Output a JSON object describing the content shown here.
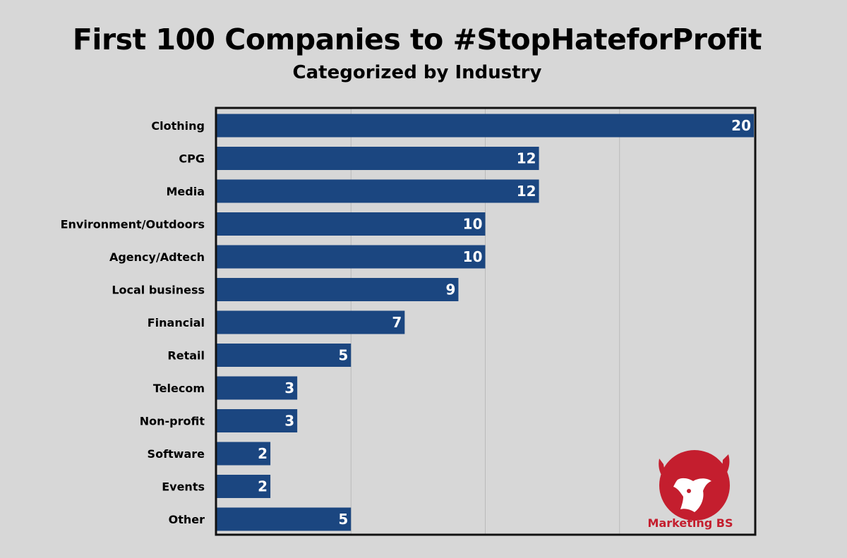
{
  "chart_data": {
    "type": "bar",
    "orientation": "horizontal",
    "title": "First 100 Companies to #StopHateforProfit",
    "subtitle": "Categorized by Industry",
    "categories": [
      "Clothing",
      "CPG",
      "Media",
      "Environment/Outdoors",
      "Agency/Adtech",
      "Local business",
      "Financial",
      "Retail",
      "Telecom",
      "Non-profit",
      "Software",
      "Events",
      "Other"
    ],
    "values": [
      20,
      12,
      12,
      10,
      10,
      9,
      7,
      5,
      3,
      3,
      2,
      2,
      5
    ],
    "xlim": [
      0,
      20
    ],
    "grid": true,
    "data_labels": true
  },
  "colors": {
    "bar": "#1b4680",
    "background": "#d7d7d7",
    "plot_background": "#d7d7d7",
    "logo": "#c41e2e"
  },
  "logo": {
    "text": "Marketing BS",
    "icon": "bull-head-icon"
  }
}
